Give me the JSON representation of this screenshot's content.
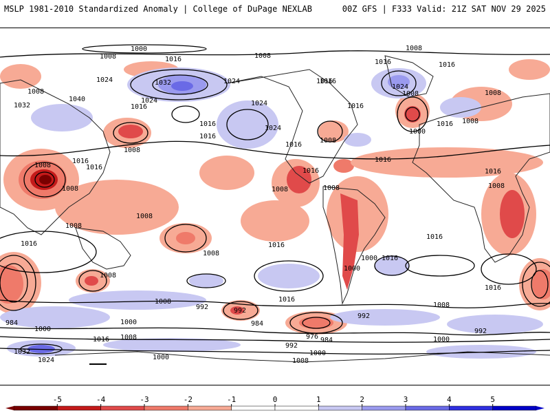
{
  "header": {
    "left_title": "MSLP 1981-2010 Standardized Anomaly | College of DuPage NEXLAB",
    "right_title": "00Z GFS | F333 Valid: 21Z SAT NOV 29 2025"
  },
  "map": {
    "isobar_labels": [
      "1000",
      "1008",
      "1016",
      "1008",
      "1024",
      "1032",
      "1024",
      "1016",
      "1016",
      "1024",
      "1016",
      "1008",
      "1032",
      "1040",
      "1024",
      "1016",
      "1024",
      "1008",
      "1016",
      "1008",
      "1016",
      "1016",
      "1016",
      "1008",
      "1000",
      "1016",
      "1008",
      "1008",
      "1024",
      "1016",
      "1008",
      "1016",
      "1016",
      "1008",
      "1016",
      "1008",
      "1008",
      "1008",
      "1016",
      "1016",
      "1008",
      "1016",
      "1008",
      "1008",
      "1008",
      "1000",
      "1016",
      "1000",
      "1016",
      "1008",
      "1016",
      "1016",
      "1016",
      "1008",
      "992",
      "984",
      "1000",
      "1000",
      "992",
      "1016",
      "1008",
      "992",
      "1008",
      "1000",
      "992",
      "984",
      "992",
      "976",
      "984",
      "1000",
      "1000",
      "1008",
      "1024",
      "1032"
    ]
  },
  "colorbar": {
    "ticks": [
      "-5",
      "-4",
      "-3",
      "-2",
      "-1",
      "0",
      "1",
      "2",
      "3",
      "4",
      "5"
    ],
    "colors": [
      "#7a0000",
      "#c41a1a",
      "#e04a4a",
      "#ef7a6a",
      "#f7aa95",
      "#ffffff",
      "#ffffff",
      "#c8c8f2",
      "#9a9aee",
      "#6a6ae6",
      "#2f2fe0",
      "#0000c8"
    ]
  }
}
